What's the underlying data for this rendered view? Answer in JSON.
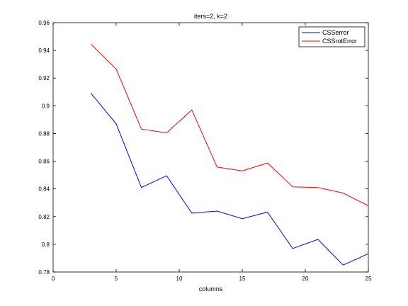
{
  "chart_data": {
    "type": "line",
    "title": "iters=2, k=2",
    "xlabel": "columns",
    "ylabel": "",
    "xlim": [
      0,
      25
    ],
    "ylim": [
      0.78,
      0.96
    ],
    "xticks": [
      0,
      5,
      10,
      15,
      20,
      25
    ],
    "yticks": [
      0.78,
      0.8,
      0.82,
      0.84,
      0.86,
      0.88,
      0.9,
      0.92,
      0.94,
      0.96
    ],
    "xtick_labels": [
      "0",
      "5",
      "10",
      "15",
      "20",
      "25"
    ],
    "ytick_labels": [
      "0.78",
      "0.8",
      "0.82",
      "0.84",
      "0.86",
      "0.88",
      "0.9",
      "0.92",
      "0.94",
      "0.96"
    ],
    "grid": false,
    "legend_position": "top-right",
    "x": [
      3,
      5,
      7,
      9,
      11,
      13,
      15,
      17,
      19,
      21,
      23,
      25
    ],
    "series": [
      {
        "name": "CSSerror",
        "color": "#0000ff",
        "values": [
          0.909,
          0.887,
          0.841,
          0.8495,
          0.8225,
          0.824,
          0.8185,
          0.8232,
          0.797,
          0.8035,
          0.785,
          0.7932
        ]
      },
      {
        "name": "CSSrotError",
        "color": "#ff0000",
        "values": [
          0.9445,
          0.9265,
          0.8832,
          0.8805,
          0.897,
          0.8558,
          0.853,
          0.8587,
          0.8415,
          0.841,
          0.837,
          0.8278
        ]
      }
    ]
  }
}
